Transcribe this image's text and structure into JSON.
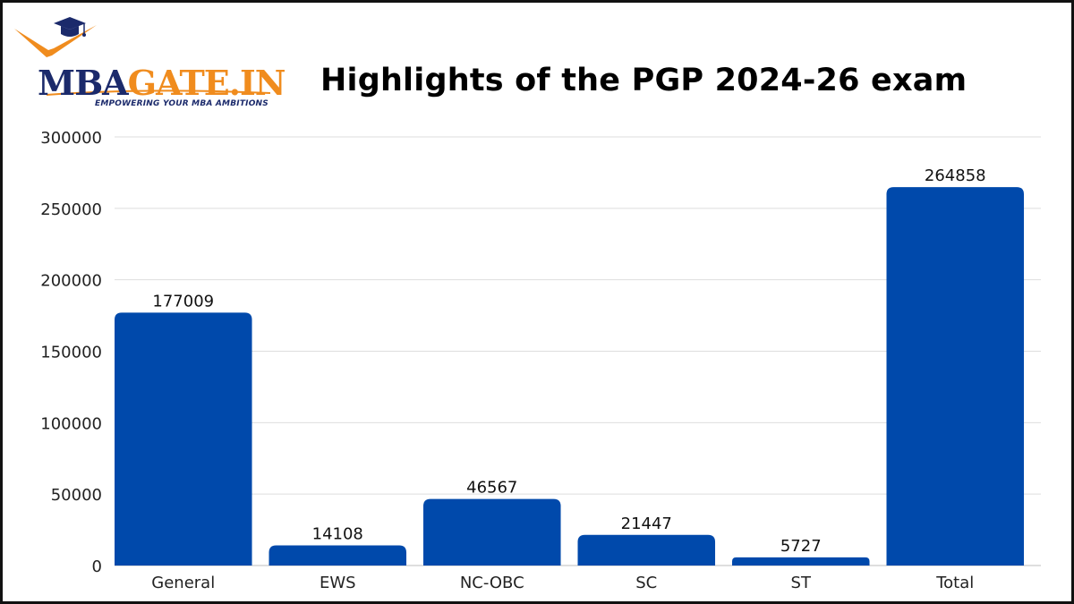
{
  "logo": {
    "brand_prefix": "MBA",
    "brand_suffix": "GATE.IN",
    "tagline": "EMPOWERING YOUR MBA AMBITIONS",
    "colors": {
      "navy": "#1b2a6b",
      "orange": "#f08c1e"
    }
  },
  "chart_data": {
    "type": "bar",
    "title": "Highlights of the PGP 2024-26 exam",
    "xlabel": "",
    "ylabel": "",
    "categories": [
      "General",
      "EWS",
      "NC-OBC",
      "SC",
      "ST",
      "Total"
    ],
    "values": [
      177009,
      14108,
      46567,
      21447,
      5727,
      264858
    ],
    "data_labels": [
      "177009",
      "14108",
      "46567",
      "21447",
      "5727",
      "264858"
    ],
    "yticks": [
      "0",
      "50000",
      "100000",
      "150000",
      "200000",
      "250000",
      "300000"
    ],
    "ylim": [
      0,
      300000
    ],
    "grid": true,
    "legend": "none",
    "bar_color": "#0049ab"
  }
}
